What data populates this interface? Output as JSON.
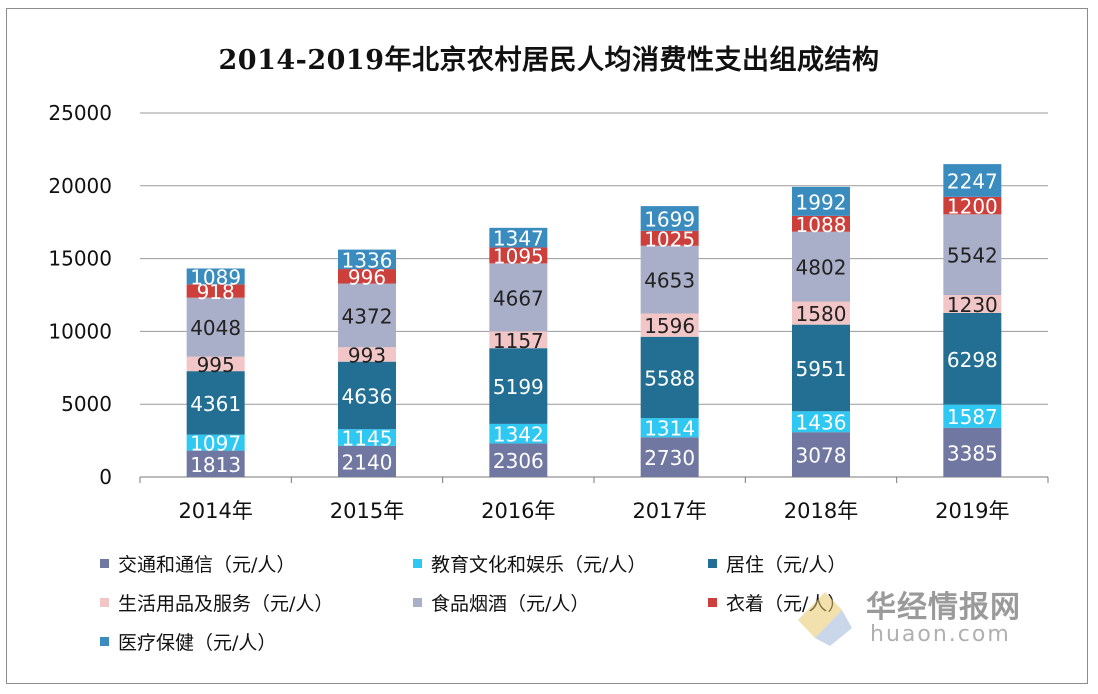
{
  "chart_data": {
    "type": "bar",
    "stacked": true,
    "title": "2014-2019年北京农村居民人均消费性支出组成结构",
    "categories": [
      "2014年",
      "2015年",
      "2016年",
      "2017年",
      "2018年",
      "2019年"
    ],
    "ylim": [
      0,
      25000
    ],
    "yticks": [
      "0",
      "5000",
      "10000",
      "15000",
      "20000",
      "25000"
    ],
    "grid": true,
    "legend_position": "bottom",
    "series": [
      {
        "name": "交通和通信（元/人）",
        "color": "#7077a1",
        "label_color": "#ffffff",
        "values": [
          1813,
          2140,
          2306,
          2730,
          3078,
          3385
        ]
      },
      {
        "name": "教育文化和娱乐（元/人）",
        "color": "#2fc8f2",
        "label_color": "#ffffff",
        "values": [
          1097,
          1145,
          1342,
          1314,
          1436,
          1587
        ]
      },
      {
        "name": "居住（元/人）",
        "color": "#236f93",
        "label_color": "#ffffff",
        "values": [
          4361,
          4636,
          5199,
          5588,
          5951,
          6298
        ]
      },
      {
        "name": "生活用品及服务（元/人）",
        "color": "#f2c6c6",
        "label_color": "#222222",
        "values": [
          995,
          993,
          1157,
          1596,
          1580,
          1230
        ]
      },
      {
        "name": "食品烟酒（元/人）",
        "color": "#a9afc8",
        "label_color": "#222222",
        "values": [
          4048,
          4372,
          4667,
          4653,
          4802,
          5542
        ]
      },
      {
        "name": "衣着（元/人）",
        "color": "#cc3f3b",
        "label_color": "#ffffff",
        "values": [
          918,
          996,
          1095,
          1025,
          1088,
          1200
        ]
      },
      {
        "name": "医疗保健（元/人）",
        "color": "#3a8cbf",
        "label_color": "#ffffff",
        "values": [
          1089,
          1336,
          1347,
          1699,
          1992,
          2247
        ]
      }
    ]
  },
  "watermark": {
    "brand_cn": "华经情报网",
    "brand_en": "huaon.com"
  }
}
